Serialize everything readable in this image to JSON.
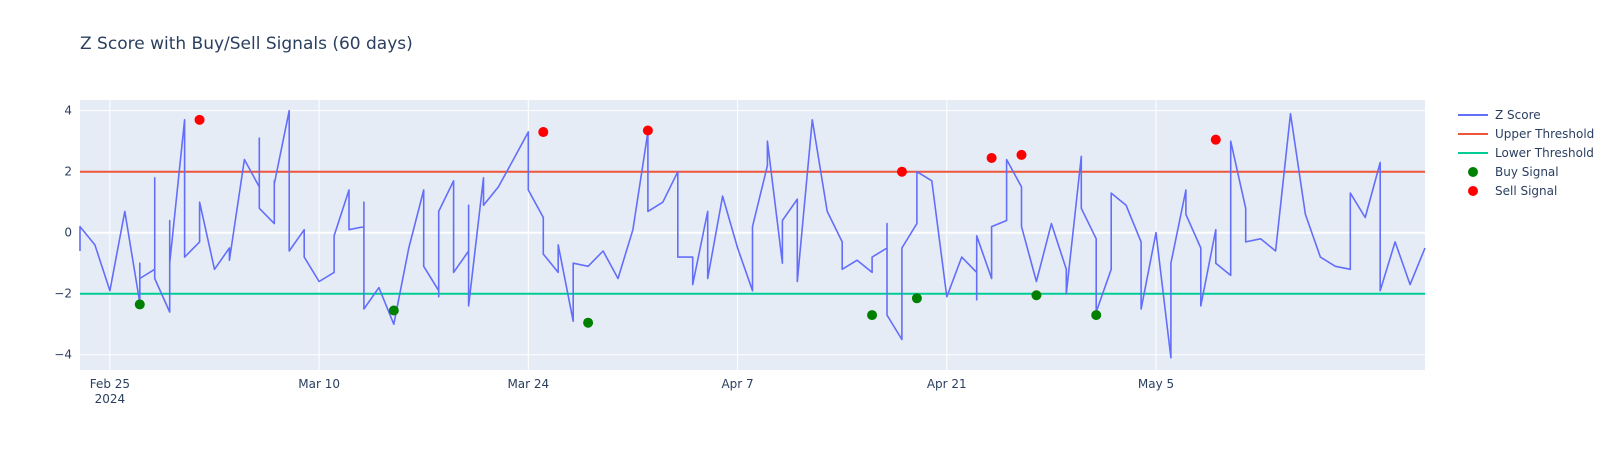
{
  "chart_data": {
    "type": "line",
    "title": "Z Score with Buy/Sell Signals (60 days)",
    "xlabel": "",
    "ylabel": "",
    "x_axis": {
      "type": "date",
      "range": [
        "2024-02-23",
        "2024-05-23"
      ],
      "ticks": [
        {
          "date": "2024-02-25",
          "label": "Feb 25",
          "sublabel": "2024"
        },
        {
          "date": "2024-03-10",
          "label": "Mar 10",
          "sublabel": ""
        },
        {
          "date": "2024-03-24",
          "label": "Mar 24",
          "sublabel": ""
        },
        {
          "date": "2024-04-07",
          "label": "Apr 7",
          "sublabel": ""
        },
        {
          "date": "2024-04-21",
          "label": "Apr 21",
          "sublabel": ""
        },
        {
          "date": "2024-05-05",
          "label": "May 5",
          "sublabel": ""
        }
      ]
    },
    "y_axis": {
      "range": [
        -4.5,
        4.35
      ],
      "ticks": [
        {
          "value": 4,
          "label": "4"
        },
        {
          "value": 2,
          "label": "2"
        },
        {
          "value": 0,
          "label": "0"
        },
        {
          "value": -2,
          "label": "−2"
        },
        {
          "value": -4,
          "label": "−4"
        }
      ]
    },
    "grid": true,
    "legend_position": "right",
    "series": [
      {
        "name": "Z Score",
        "kind": "line",
        "color": "#636efa",
        "x": [
          "2024-02-23",
          "2024-02-23",
          "2024-02-24",
          "2024-02-25",
          "2024-02-26",
          "2024-02-27",
          "2024-02-27",
          "2024-02-27",
          "2024-02-28",
          "2024-02-28",
          "2024-02-28",
          "2024-02-28",
          "2024-02-29",
          "2024-02-29",
          "2024-02-29",
          "2024-03-01",
          "2024-03-01",
          "2024-03-01",
          "2024-03-02",
          "2024-03-02",
          "2024-03-02",
          "2024-03-03",
          "2024-03-04",
          "2024-03-04",
          "2024-03-05",
          "2024-03-06",
          "2024-03-06",
          "2024-03-06",
          "2024-03-07",
          "2024-03-07",
          "2024-03-07",
          "2024-03-07",
          "2024-03-08",
          "2024-03-08",
          "2024-03-09",
          "2024-03-09",
          "2024-03-09",
          "2024-03-10",
          "2024-03-11",
          "2024-03-11",
          "2024-03-12",
          "2024-03-12",
          "2024-03-12",
          "2024-03-13",
          "2024-03-13",
          "2024-03-13",
          "2024-03-14",
          "2024-03-15",
          "2024-03-16",
          "2024-03-17",
          "2024-03-17",
          "2024-03-17",
          "2024-03-18",
          "2024-03-18",
          "2024-03-18",
          "2024-03-19",
          "2024-03-19",
          "2024-03-20",
          "2024-03-20",
          "2024-03-20",
          "2024-03-21",
          "2024-03-21",
          "2024-03-22",
          "2024-03-23",
          "2024-03-24",
          "2024-03-24",
          "2024-03-25",
          "2024-03-25",
          "2024-03-26",
          "2024-03-26",
          "2024-03-27",
          "2024-03-27",
          "2024-03-28",
          "2024-03-29",
          "2024-03-30",
          "2024-03-31",
          "2024-04-01",
          "2024-04-01",
          "2024-04-02",
          "2024-04-03",
          "2024-04-03",
          "2024-04-04",
          "2024-04-04",
          "2024-04-05",
          "2024-04-05",
          "2024-04-06",
          "2024-04-07",
          "2024-04-08",
          "2024-04-08",
          "2024-04-09",
          "2024-04-09",
          "2024-04-10",
          "2024-04-10",
          "2024-04-11",
          "2024-04-11",
          "2024-04-12",
          "2024-04-13",
          "2024-04-14",
          "2024-04-14",
          "2024-04-15",
          "2024-04-16",
          "2024-04-16",
          "2024-04-17",
          "2024-04-17",
          "2024-04-17",
          "2024-04-18",
          "2024-04-18",
          "2024-04-19",
          "2024-04-19",
          "2024-04-20",
          "2024-04-21",
          "2024-04-22",
          "2024-04-22",
          "2024-04-23",
          "2024-04-23",
          "2024-04-23",
          "2024-04-24",
          "2024-04-24",
          "2024-04-25",
          "2024-04-25",
          "2024-04-26",
          "2024-04-26",
          "2024-04-27",
          "2024-04-28",
          "2024-04-29",
          "2024-04-29",
          "2024-04-30",
          "2024-04-30",
          "2024-05-01",
          "2024-05-01",
          "2024-05-02",
          "2024-05-02",
          "2024-05-03",
          "2024-05-04",
          "2024-05-04",
          "2024-05-05",
          "2024-05-06",
          "2024-05-06",
          "2024-05-07",
          "2024-05-07",
          "2024-05-08",
          "2024-05-08",
          "2024-05-09",
          "2024-05-09",
          "2024-05-10",
          "2024-05-10",
          "2024-05-11",
          "2024-05-11",
          "2024-05-12",
          "2024-05-13",
          "2024-05-14",
          "2024-05-15",
          "2024-05-16",
          "2024-05-17",
          "2024-05-18",
          "2024-05-18",
          "2024-05-19",
          "2024-05-20",
          "2024-05-20",
          "2024-05-21",
          "2024-05-22",
          "2024-05-23"
        ],
        "y": [
          -0.6,
          0.2,
          -0.4,
          -1.9,
          0.7,
          -2.3,
          -1.0,
          -1.5,
          -1.2,
          -0.8,
          1.8,
          -1.5,
          -2.6,
          0.4,
          -1.0,
          3.7,
          0.3,
          -0.8,
          -0.3,
          0.6,
          1.0,
          -1.2,
          -0.5,
          -0.9,
          2.4,
          1.5,
          3.1,
          0.8,
          0.3,
          1.7,
          0.5,
          1.6,
          4.0,
          -0.6,
          0.1,
          -0.2,
          -0.8,
          -1.6,
          -1.3,
          -0.1,
          1.4,
          0.3,
          0.1,
          0.2,
          1.0,
          -2.5,
          -1.8,
          -3.0,
          -0.5,
          1.4,
          0.3,
          -1.1,
          -1.9,
          -2.1,
          0.7,
          1.7,
          -1.3,
          -0.6,
          0.9,
          -2.4,
          1.8,
          0.9,
          1.5,
          2.4,
          3.3,
          1.4,
          0.5,
          -0.7,
          -1.3,
          -0.4,
          -2.9,
          -1.0,
          -1.1,
          -0.6,
          -1.5,
          0.1,
          3.3,
          0.7,
          1.0,
          2.0,
          -0.8,
          -0.8,
          -1.7,
          0.7,
          -1.5,
          1.2,
          -0.5,
          -1.9,
          0.2,
          2.2,
          3.0,
          -1.0,
          0.4,
          1.1,
          -1.6,
          3.7,
          0.7,
          -0.3,
          -1.2,
          -0.9,
          -1.3,
          -0.8,
          -0.5,
          0.3,
          -2.7,
          -3.5,
          -0.5,
          0.3,
          2.0,
          1.7,
          -2.1,
          -0.8,
          -0.8,
          -1.3,
          -2.2,
          -0.1,
          -1.5,
          0.2,
          0.4,
          2.4,
          1.5,
          0.2,
          -1.6,
          0.3,
          -1.2,
          -2.0,
          2.5,
          0.8,
          -0.2,
          -2.6,
          -1.2,
          1.3,
          0.9,
          -0.3,
          -2.5,
          0.0,
          -4.1,
          -1.0,
          1.4,
          0.6,
          -0.5,
          -2.4,
          0.1,
          -1.0,
          -1.4,
          3.0,
          0.8,
          -0.3,
          -0.2,
          -0.6,
          3.9,
          0.6,
          -0.8,
          -1.1,
          -1.2,
          1.3,
          0.5,
          2.3,
          -1.9,
          -0.3,
          -1.7,
          -0.5
        ]
      },
      {
        "name": "Upper Threshold",
        "kind": "hline",
        "color": "#ef553b",
        "value": 2
      },
      {
        "name": "Lower Threshold",
        "kind": "hline",
        "color": "#00cc96",
        "value": -2
      },
      {
        "name": "Buy Signal",
        "kind": "markers",
        "color": "#008000",
        "points": [
          {
            "x": "2024-02-27",
            "y": -2.35
          },
          {
            "x": "2024-03-15",
            "y": -2.55
          },
          {
            "x": "2024-03-28",
            "y": -2.95
          },
          {
            "x": "2024-04-16",
            "y": -2.7
          },
          {
            "x": "2024-04-19",
            "y": -2.15
          },
          {
            "x": "2024-04-27",
            "y": -2.05
          },
          {
            "x": "2024-05-01",
            "y": -2.7
          }
        ]
      },
      {
        "name": "Sell Signal",
        "kind": "markers",
        "color": "#ff0000",
        "points": [
          {
            "x": "2024-03-02",
            "y": 3.7
          },
          {
            "x": "2024-03-25",
            "y": 3.3
          },
          {
            "x": "2024-04-01",
            "y": 3.35
          },
          {
            "x": "2024-04-18",
            "y": 2.0
          },
          {
            "x": "2024-04-24",
            "y": 2.45
          },
          {
            "x": "2024-04-26",
            "y": 2.55
          },
          {
            "x": "2024-05-09",
            "y": 3.05
          }
        ]
      }
    ]
  }
}
